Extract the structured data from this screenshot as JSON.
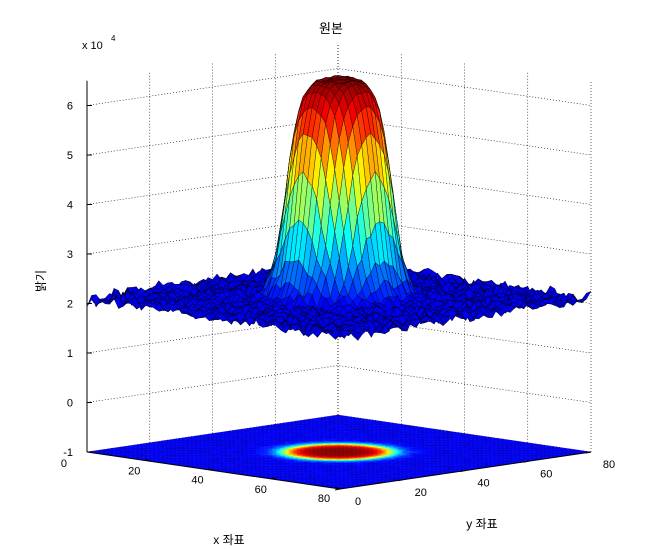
{
  "chart_data": {
    "type": "surface",
    "title": "원본",
    "xlabel": "x 좌표",
    "ylabel": "y 좌표",
    "zlabel": "밝기",
    "z_exponent_label": "x 10",
    "z_exponent_power": "4",
    "xlim": [
      0,
      80
    ],
    "ylim": [
      0,
      80
    ],
    "zlim": [
      -1,
      6.5
    ],
    "x_ticks": [
      "20",
      "40",
      "60",
      "80"
    ],
    "y_ticks": [
      "0",
      "20",
      "40",
      "60",
      "80"
    ],
    "z_ticks": [
      "-1",
      "0",
      "1",
      "2",
      "3",
      "4",
      "5",
      "6"
    ],
    "x_origin_tick": "0",
    "grid": true,
    "colormap": "jet",
    "surface": {
      "center_x": 40,
      "center_y": 40,
      "plateau_radius": 12,
      "edge_width": 5,
      "base_level": 2.1,
      "peak_level": 6.55,
      "noise_amplitude": 0.12
    },
    "floor_projection_level": -1
  }
}
